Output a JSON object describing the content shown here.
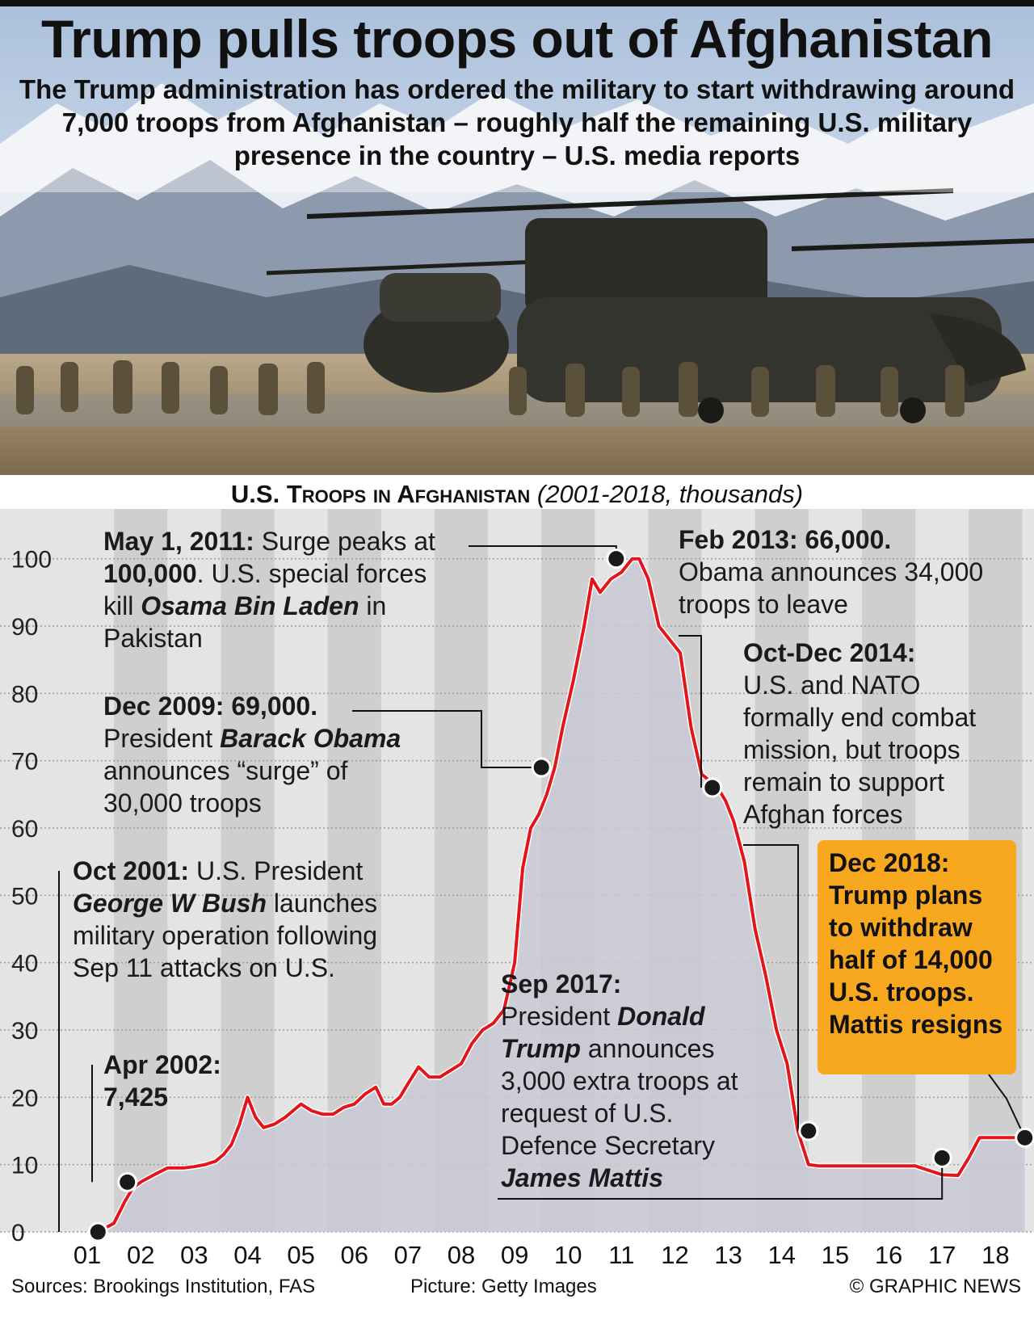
{
  "header": {
    "title": "Trump pulls troops out of Afghanistan",
    "subtitle": "The Trump administration has ordered the military to start withdrawing around 7,000 troops from Afghanistan – roughly half the remaining U.S. military presence in the country – U.S. media reports"
  },
  "chart_heading": {
    "main": "U.S. Troops in Afghanistan",
    "note": "(2001-2018, thousands)"
  },
  "colors": {
    "line": "#e3151a",
    "area": "#c9c9d6",
    "callout": "#f7a81e",
    "band_light": "#e4e4e4",
    "band_dark": "#cfcfcf"
  },
  "annotations": {
    "oct2001": {
      "head": "Oct 2001:",
      "t1": " U.S. President",
      "name": "George W Bush",
      "t2": " launches military operation following Sep 11 attacks on U.S."
    },
    "apr2002": {
      "head": "Apr 2002:",
      "value": "7,425"
    },
    "dec2009": {
      "head": "Dec 2009: 69,000.",
      "t1": " President ",
      "name1": "Barack Obama",
      "t2": " announces “surge” of 30,000 troops"
    },
    "may2011": {
      "head": "May 1, 2011:",
      "t1": " Surge peaks at ",
      "value": "100,000",
      "t2": ". U.S. special forces kill ",
      "name": "Osama Bin Laden",
      "t3": " in Pakistan"
    },
    "feb2013": {
      "head": "Feb 2013: 66,000.",
      "text": "Obama announces 34,000 troops to leave"
    },
    "oct2014": {
      "head": "Oct-Dec 2014:",
      "text": "U.S. and NATO formally end combat mission, but troops remain to support Afghan forces"
    },
    "sep2017": {
      "head": "Sep 2017:",
      "t1": "President ",
      "name1": "Donald Trump",
      "t2": " announces 3,000 extra troops at request of U.S. Defence Secretary ",
      "name2": "James Mattis"
    },
    "dec2018": {
      "text": "Dec 2018: Trump plans to withdraw half of 14,000 U.S. troops. Mattis resigns"
    }
  },
  "footer": {
    "sources": "Sources: Brookings Institution, FAS",
    "picture": "Picture: Getty Images",
    "credit": "© GRAPHIC NEWS"
  },
  "chart_data": {
    "type": "area",
    "title": "U.S. Troops in Afghanistan",
    "subtitle": "(2001-2018, thousands)",
    "xlabel": "",
    "ylabel": "",
    "ylim": [
      0,
      105
    ],
    "xlim": [
      2001,
      2018.6
    ],
    "grid": true,
    "y_ticks": [
      "0",
      "10",
      "20",
      "30",
      "40",
      "50",
      "60",
      "70",
      "80",
      "90",
      "100"
    ],
    "x_ticks": [
      "01",
      "02",
      "03",
      "04",
      "05",
      "06",
      "07",
      "08",
      "09",
      "10",
      "11",
      "12",
      "13",
      "14",
      "15",
      "16",
      "17",
      "18"
    ],
    "series": [
      {
        "x": [
          2001.2,
          2001.5,
          2001.7,
          2001.85,
          2002.0,
          2002.25,
          2002.5,
          2002.8,
          2003.0,
          2003.2,
          2003.4,
          2003.55,
          2003.7,
          2003.85,
          2004.0,
          2004.15,
          2004.3,
          2004.5,
          2004.7,
          2004.85,
          2005.0,
          2005.2,
          2005.4,
          2005.6,
          2005.8,
          2006.0,
          2006.2,
          2006.4,
          2006.55,
          2006.7,
          2006.85,
          2007.0,
          2007.2,
          2007.4,
          2007.6,
          2007.8,
          2008.0,
          2008.2,
          2008.4,
          2008.6,
          2008.8,
          2009.0,
          2009.15,
          2009.3,
          2009.45,
          2009.6,
          2009.75,
          2009.9,
          2010.1,
          2010.3,
          2010.45,
          2010.6,
          2010.8,
          2011.0,
          2011.2,
          2011.33,
          2011.5,
          2011.7,
          2011.9,
          2012.1,
          2012.3,
          2012.5,
          2012.65,
          2012.8,
          2012.95,
          2013.1,
          2013.3,
          2013.5,
          2013.7,
          2013.9,
          2014.1,
          2014.3,
          2014.5,
          2014.7,
          2014.85,
          2015.0,
          2015.5,
          2016.0,
          2016.5,
          2017.0,
          2017.3,
          2017.5,
          2017.7,
          2017.9,
          2018.2,
          2018.4,
          2018.55
        ],
        "values": [
          0,
          1.3,
          4.5,
          6.5,
          7.4,
          8.5,
          9.5,
          9.5,
          9.7,
          10,
          10.5,
          11.5,
          13,
          16,
          20,
          17,
          15.5,
          16,
          17,
          18,
          19,
          18,
          17.5,
          17.5,
          18.5,
          19,
          20.5,
          21.5,
          19,
          19,
          20,
          22,
          24.5,
          23,
          23,
          24,
          25,
          28,
          30,
          31,
          33,
          40,
          54,
          60,
          62,
          65,
          69,
          75,
          82,
          90,
          97,
          95,
          97,
          98,
          100,
          100,
          97,
          90,
          88,
          86,
          75,
          68,
          67,
          66,
          64,
          61,
          55,
          45,
          38,
          30,
          25,
          15,
          10,
          9.8,
          9.8,
          9.8,
          9.8,
          9.8,
          9.8,
          8.5,
          8.4,
          11,
          14,
          14,
          14,
          14,
          14
        ]
      }
    ],
    "key_points": [
      {
        "label": "Oct 2001",
        "x": 2001.2,
        "y": 0
      },
      {
        "label": "Apr 2002",
        "x": 2001.75,
        "y": 7.4
      },
      {
        "label": "Dec 2009",
        "x": 2009.5,
        "y": 69
      },
      {
        "label": "May 1, 2011",
        "x": 2010.9,
        "y": 100
      },
      {
        "label": "Feb 2013",
        "x": 2012.7,
        "y": 66
      },
      {
        "label": "Oct-Dec 2014",
        "x": 2014.5,
        "y": 15
      },
      {
        "label": "Sep 2017",
        "x": 2017.0,
        "y": 11
      },
      {
        "label": "Dec 2018",
        "x": 2018.55,
        "y": 14
      }
    ]
  }
}
